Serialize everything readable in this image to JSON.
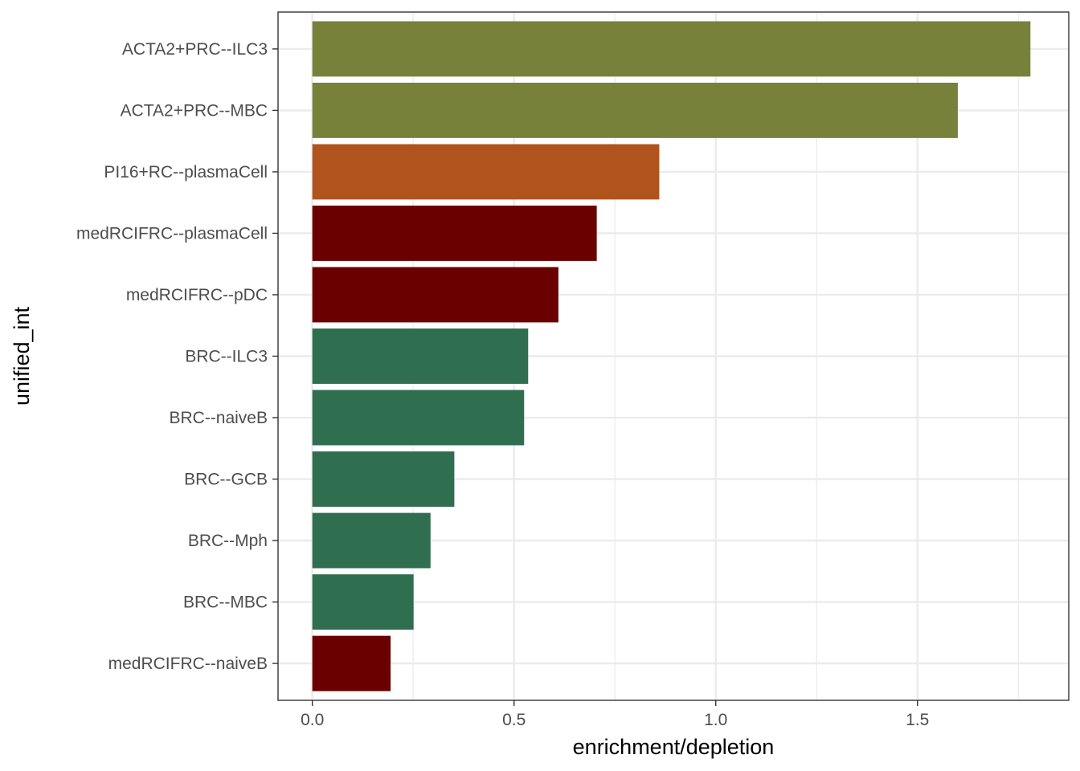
{
  "chart_data": {
    "type": "bar",
    "orientation": "horizontal",
    "title": "",
    "xlabel": "enrichment/depletion",
    "ylabel": "unified_int",
    "xlim": [
      -0.085,
      1.875
    ],
    "x_ticks": [
      0.0,
      0.5,
      1.0,
      1.5
    ],
    "x_tick_labels": [
      "0.0",
      "0.5",
      "1.0",
      "1.5"
    ],
    "grid": true,
    "legend": "none",
    "categories": [
      "ACTA2+PRC--ILC3",
      "ACTA2+PRC--MBC",
      "PI16+RC--plasmaCell",
      "medRCIFRC--plasmaCell",
      "medRCIFRC--pDC",
      "BRC--ILC3",
      "BRC--naiveB",
      "BRC--GCB",
      "BRC--Mph",
      "BRC--MBC",
      "medRCIFRC--naiveB"
    ],
    "values": [
      1.78,
      1.6,
      0.86,
      0.705,
      0.61,
      0.535,
      0.525,
      0.352,
      0.293,
      0.251,
      0.194
    ],
    "bar_colors": [
      "#78813A",
      "#78813A",
      "#B0531D",
      "#6B0000",
      "#6B0000",
      "#2F6E4F",
      "#2F6E4F",
      "#2F6E4F",
      "#2F6E4F",
      "#2F6E4F",
      "#6B0000"
    ]
  }
}
